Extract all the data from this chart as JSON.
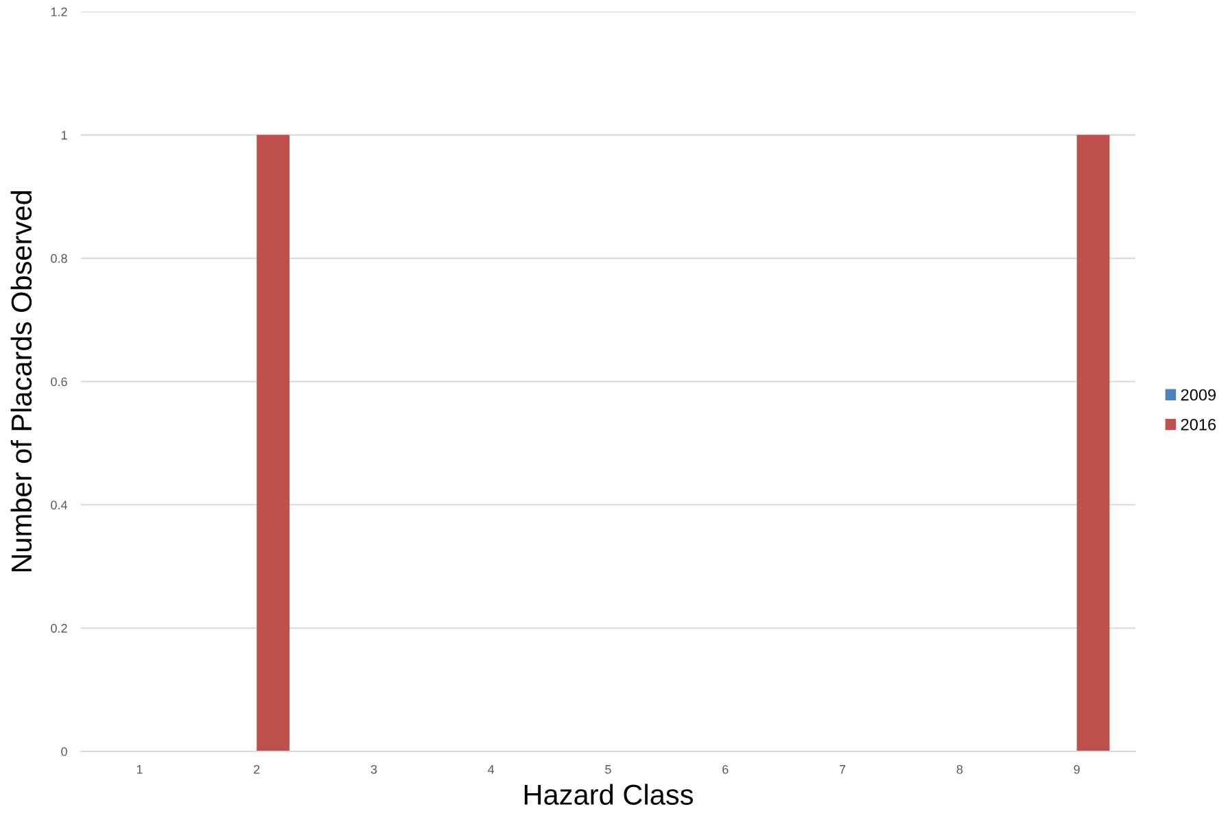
{
  "chart_data": {
    "type": "bar",
    "xlabel": "Hazard Class",
    "ylabel": "Number of Placards Observed",
    "categories": [
      "1",
      "2",
      "3",
      "4",
      "5",
      "6",
      "7",
      "8",
      "9"
    ],
    "series": [
      {
        "name": "2009",
        "color": "#4f81bd",
        "values": [
          0,
          0,
          0,
          0,
          0,
          0,
          0,
          0,
          0
        ]
      },
      {
        "name": "2016",
        "color": "#c0504d",
        "values": [
          0,
          1,
          0,
          0,
          0,
          0,
          0,
          0,
          1
        ]
      }
    ],
    "ylim": [
      0,
      1.2
    ],
    "yticks": [
      0,
      0.2,
      0.4,
      0.6,
      0.8,
      1,
      1.2
    ],
    "grid": "y",
    "legend": "right"
  }
}
